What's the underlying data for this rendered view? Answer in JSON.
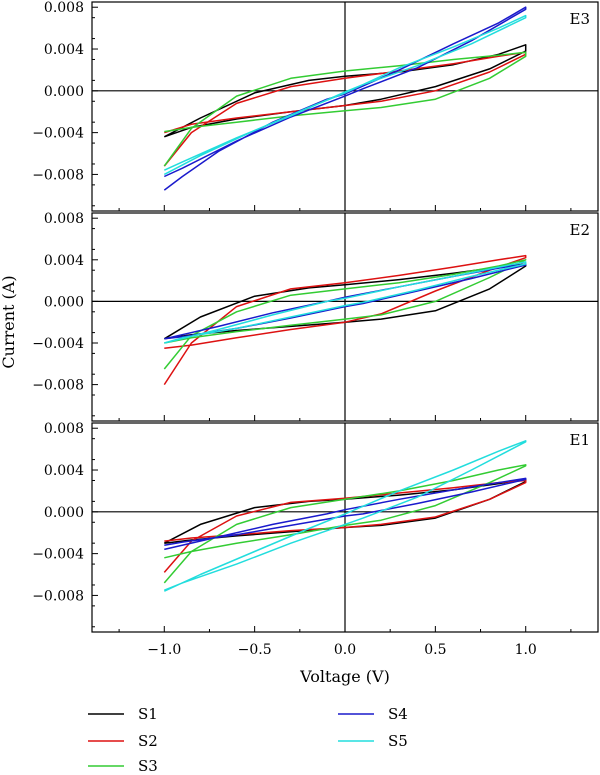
{
  "chart_data": {
    "type": "line",
    "xlabel": "Voltage (V)",
    "ylabel": "Current (A)",
    "xlim": [
      -1.4,
      1.4
    ],
    "ylim": [
      -0.0115,
      0.0085
    ],
    "x_ticks": [
      -1.0,
      -0.5,
      0.0,
      0.5,
      1.0
    ],
    "x_tick_labels": [
      "−1.0",
      "−0.5",
      "0.0",
      "0.5",
      "1.0"
    ],
    "y_ticks": [
      -0.008,
      -0.004,
      0.0,
      0.004,
      0.008
    ],
    "y_tick_labels": [
      "−0.008",
      "−0.004",
      "0.000",
      "0.004",
      "0.008"
    ],
    "grid": false,
    "legend": {
      "placement": "bottom",
      "entries": [
        {
          "name": "S1",
          "color": "#000000"
        },
        {
          "name": "S2",
          "color": "#dd1111"
        },
        {
          "name": "S3",
          "color": "#33cc33"
        },
        {
          "name": "S4",
          "color": "#1a1acc"
        },
        {
          "name": "S5",
          "color": "#22dddd"
        }
      ]
    },
    "panels": [
      {
        "label": "E3",
        "series": [
          {
            "name": "S1",
            "color": "#000000",
            "x": [
              -1.0,
              -0.8,
              -0.5,
              -0.2,
              0.0,
              0.3,
              0.6,
              0.85,
              1.0,
              1.0,
              0.8,
              0.5,
              0.2,
              0.0,
              -0.3,
              -0.6,
              -0.85,
              -1.0
            ],
            "y": [
              -0.0044,
              -0.0026,
              -0.0002,
              0.001,
              0.0014,
              0.0018,
              0.0025,
              0.0035,
              0.0044,
              0.0038,
              0.0021,
              0.0004,
              -0.0008,
              -0.0014,
              -0.002,
              -0.0027,
              -0.0035,
              -0.0044
            ]
          },
          {
            "name": "S2",
            "color": "#dd1111",
            "x": [
              -1.0,
              -0.85,
              -0.6,
              -0.3,
              0.0,
              0.3,
              0.6,
              0.85,
              1.0,
              1.0,
              0.8,
              0.5,
              0.2,
              0.0,
              -0.3,
              -0.6,
              -0.85,
              -1.0
            ],
            "y": [
              -0.0072,
              -0.004,
              -0.0012,
              0.0004,
              0.0012,
              0.0019,
              0.0026,
              0.0033,
              0.0037,
              0.0035,
              0.0018,
              0.0,
              -0.001,
              -0.0014,
              -0.002,
              -0.0026,
              -0.0032,
              -0.004
            ]
          },
          {
            "name": "S3",
            "color": "#33cc33",
            "x": [
              -1.0,
              -0.85,
              -0.6,
              -0.3,
              0.0,
              0.3,
              0.6,
              0.85,
              1.0,
              1.0,
              0.8,
              0.5,
              0.2,
              0.0,
              -0.3,
              -0.6,
              -0.85,
              -1.0
            ],
            "y": [
              -0.0072,
              -0.0036,
              -0.0005,
              0.0012,
              0.0019,
              0.0024,
              0.003,
              0.0034,
              0.0037,
              0.0033,
              0.0012,
              -0.0008,
              -0.0016,
              -0.0019,
              -0.0024,
              -0.003,
              -0.0035,
              -0.0039
            ]
          },
          {
            "name": "S4",
            "color": "#1a1acc",
            "x": [
              -1.0,
              -0.9,
              -0.7,
              -0.4,
              -0.1,
              0.0,
              0.3,
              0.6,
              0.85,
              1.0,
              1.0,
              0.7,
              0.4,
              0.1,
              0.0,
              -0.3,
              -0.6,
              -0.9,
              -1.0
            ],
            "y": [
              -0.0095,
              -0.0082,
              -0.0058,
              -0.003,
              -0.0008,
              -0.0003,
              0.002,
              0.0045,
              0.0065,
              0.008,
              0.0078,
              0.0048,
              0.0022,
              0.0002,
              -0.0005,
              -0.0025,
              -0.0048,
              -0.0074,
              -0.0082
            ]
          },
          {
            "name": "S5",
            "color": "#22dddd",
            "x": [
              -1.0,
              -0.8,
              -0.5,
              -0.2,
              0.0,
              0.3,
              0.6,
              0.85,
              1.0,
              1.0,
              0.7,
              0.4,
              0.1,
              0.0,
              -0.3,
              -0.6,
              -0.9,
              -1.0
            ],
            "y": [
              -0.008,
              -0.0062,
              -0.0038,
              -0.0016,
              -0.0002,
              0.0022,
              0.0042,
              0.006,
              0.0072,
              0.007,
              0.0045,
              0.0024,
              0.0006,
              -0.0001,
              -0.0024,
              -0.0045,
              -0.0068,
              -0.0076
            ]
          }
        ]
      },
      {
        "label": "E2",
        "series": [
          {
            "name": "S1",
            "color": "#000000",
            "x": [
              -1.0,
              -0.8,
              -0.5,
              -0.2,
              0.0,
              0.3,
              0.6,
              0.85,
              1.0,
              1.0,
              0.8,
              0.5,
              0.2,
              0.0,
              -0.3,
              -0.6,
              -0.85,
              -1.0
            ],
            "y": [
              -0.0036,
              -0.0015,
              0.0005,
              0.0013,
              0.0016,
              0.0021,
              0.0027,
              0.0033,
              0.0036,
              0.0034,
              0.0012,
              -0.0009,
              -0.0017,
              -0.002,
              -0.0024,
              -0.0028,
              -0.0032,
              -0.0036
            ]
          },
          {
            "name": "S2",
            "color": "#dd1111",
            "x": [
              -1.0,
              -0.85,
              -0.6,
              -0.3,
              0.0,
              0.3,
              0.6,
              0.85,
              1.0,
              1.0,
              0.8,
              0.5,
              0.2,
              0.0,
              -0.3,
              -0.6,
              -0.85,
              -1.0
            ],
            "y": [
              -0.008,
              -0.004,
              -0.0005,
              0.0012,
              0.0018,
              0.0025,
              0.0033,
              0.004,
              0.0044,
              0.0042,
              0.003,
              0.001,
              -0.0012,
              -0.002,
              -0.0027,
              -0.0035,
              -0.0042,
              -0.0045
            ]
          },
          {
            "name": "S3",
            "color": "#33cc33",
            "x": [
              -1.0,
              -0.85,
              -0.6,
              -0.3,
              0.0,
              0.3,
              0.6,
              0.85,
              1.0,
              1.0,
              0.8,
              0.5,
              0.2,
              0.0,
              -0.3,
              -0.6,
              -0.85,
              -1.0
            ],
            "y": [
              -0.0065,
              -0.0033,
              -0.001,
              0.0006,
              0.0012,
              0.0018,
              0.0026,
              0.0034,
              0.004,
              0.004,
              0.0023,
              0.0,
              -0.0013,
              -0.0017,
              -0.0023,
              -0.0029,
              -0.0035,
              -0.004
            ]
          },
          {
            "name": "S4",
            "color": "#1a1acc",
            "x": [
              -1.0,
              -0.7,
              -0.4,
              -0.1,
              0.0,
              0.3,
              0.6,
              0.85,
              1.0,
              1.0,
              0.7,
              0.4,
              0.1,
              0.0,
              -0.3,
              -0.6,
              -0.9,
              -1.0
            ],
            "y": [
              -0.0036,
              -0.0024,
              -0.0011,
              0.0,
              0.0004,
              0.0014,
              0.0024,
              0.0032,
              0.0036,
              0.0035,
              0.0022,
              0.001,
              -0.0002,
              -0.0005,
              -0.0016,
              -0.0026,
              -0.0034,
              -0.0036
            ]
          },
          {
            "name": "S5",
            "color": "#22dddd",
            "x": [
              -1.0,
              -0.7,
              -0.4,
              -0.1,
              0.0,
              0.3,
              0.6,
              0.85,
              1.0,
              1.0,
              0.7,
              0.4,
              0.1,
              0.0,
              -0.3,
              -0.6,
              -0.9,
              -1.0
            ],
            "y": [
              -0.004,
              -0.0027,
              -0.0013,
              0.0,
              0.0003,
              0.0014,
              0.0024,
              0.0033,
              0.0038,
              0.0036,
              0.0024,
              0.0011,
              -0.0001,
              -0.0004,
              -0.0015,
              -0.0026,
              -0.0035,
              -0.004
            ]
          }
        ]
      },
      {
        "label": "E1",
        "series": [
          {
            "name": "S1",
            "color": "#000000",
            "x": [
              -1.0,
              -0.8,
              -0.5,
              -0.2,
              0.0,
              0.3,
              0.6,
              0.85,
              1.0,
              1.0,
              0.8,
              0.5,
              0.2,
              0.0,
              -0.3,
              -0.6,
              -0.85,
              -1.0
            ],
            "y": [
              -0.003,
              -0.0012,
              0.0004,
              0.001,
              0.0012,
              0.0016,
              0.0021,
              0.0027,
              0.0031,
              0.0029,
              0.0012,
              -0.0006,
              -0.0013,
              -0.0015,
              -0.0019,
              -0.0023,
              -0.0027,
              -0.003
            ]
          },
          {
            "name": "S2",
            "color": "#dd1111",
            "x": [
              -1.0,
              -0.85,
              -0.6,
              -0.3,
              0.0,
              0.3,
              0.6,
              0.85,
              1.0,
              1.0,
              0.8,
              0.5,
              0.2,
              0.0,
              -0.3,
              -0.6,
              -0.85,
              -1.0
            ],
            "y": [
              -0.0058,
              -0.0028,
              -0.0004,
              0.0009,
              0.0013,
              0.0018,
              0.0023,
              0.0028,
              0.003,
              0.0028,
              0.0012,
              -0.0005,
              -0.0012,
              -0.0015,
              -0.0018,
              -0.0022,
              -0.0025,
              -0.0028
            ]
          },
          {
            "name": "S3",
            "color": "#33cc33",
            "x": [
              -1.0,
              -0.85,
              -0.6,
              -0.3,
              0.0,
              0.3,
              0.6,
              0.85,
              1.0,
              1.0,
              0.8,
              0.5,
              0.2,
              0.0,
              -0.3,
              -0.6,
              -0.85,
              -1.0
            ],
            "y": [
              -0.0068,
              -0.0038,
              -0.0012,
              0.0004,
              0.0012,
              0.002,
              0.003,
              0.004,
              0.0045,
              0.0044,
              0.0028,
              0.0006,
              -0.0008,
              -0.0013,
              -0.0022,
              -0.003,
              -0.0038,
              -0.0044
            ]
          },
          {
            "name": "S4",
            "color": "#1a1acc",
            "x": [
              -1.0,
              -0.7,
              -0.4,
              -0.1,
              0.0,
              0.3,
              0.6,
              0.85,
              1.0,
              1.0,
              0.7,
              0.4,
              0.1,
              0.0,
              -0.3,
              -0.6,
              -0.9,
              -1.0
            ],
            "y": [
              -0.0036,
              -0.0024,
              -0.0012,
              -0.0002,
              0.0002,
              0.0012,
              0.0021,
              0.0028,
              0.0032,
              0.0031,
              0.0019,
              0.0008,
              -0.0002,
              -0.0004,
              -0.0013,
              -0.0022,
              -0.0029,
              -0.0032
            ]
          },
          {
            "name": "S5",
            "color": "#22dddd",
            "x": [
              -1.0,
              -0.8,
              -0.5,
              -0.2,
              0.0,
              0.3,
              0.6,
              0.85,
              1.0,
              1.0,
              0.7,
              0.4,
              0.1,
              0.0,
              -0.3,
              -0.6,
              -0.9,
              -1.0
            ],
            "y": [
              -0.0076,
              -0.006,
              -0.0038,
              -0.0016,
              -0.0002,
              0.002,
              0.004,
              0.0058,
              0.0068,
              0.0067,
              0.004,
              0.0014,
              -0.0006,
              -0.0012,
              -0.003,
              -0.005,
              -0.0068,
              -0.0075
            ]
          }
        ]
      }
    ]
  }
}
